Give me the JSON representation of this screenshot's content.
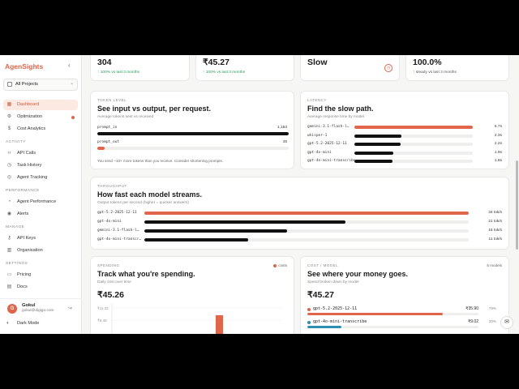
{
  "app": {
    "brand": "AgenSights",
    "project": "All Projects"
  },
  "nav": {
    "main": [
      {
        "label": "Dashboard",
        "icon": "grid-icon",
        "active": true
      },
      {
        "label": "Optimization",
        "icon": "gear-icon",
        "dot": true
      },
      {
        "label": "Cost Analytics",
        "icon": "dollar-icon"
      }
    ],
    "activity_label": "ACTIVITY",
    "activity": [
      {
        "label": "API Calls",
        "icon": "code-icon"
      },
      {
        "label": "Task History",
        "icon": "history-icon"
      },
      {
        "label": "Agent Tracking",
        "icon": "agent-icon"
      }
    ],
    "performance_label": "PERFORMANCE",
    "performance": [
      {
        "label": "Agent Performance",
        "icon": "gauge-icon"
      },
      {
        "label": "Alerts",
        "icon": "bell-icon"
      }
    ],
    "manage_label": "MANAGE",
    "manage": [
      {
        "label": "API Keys",
        "icon": "key-icon"
      },
      {
        "label": "Organisation",
        "icon": "building-icon"
      }
    ],
    "settings_label": "SETTINGS",
    "settings": [
      {
        "label": "Pricing",
        "icon": "card-icon"
      },
      {
        "label": "Docs",
        "icon": "doc-icon"
      }
    ]
  },
  "user": {
    "initial": "G",
    "name": "Gokul",
    "email": "gokul@digigo.com"
  },
  "dark_mode": "Dark Mode",
  "kpis": [
    {
      "value": "304",
      "delta": "↑ 100% vs last 3 months"
    },
    {
      "value": "₹45.27",
      "delta": "↑ 100% vs last 3 months"
    },
    {
      "value": "Slow",
      "delta": ""
    },
    {
      "value": "100.0%",
      "delta": "↑ steady vs last 3 months"
    }
  ],
  "tokens": {
    "overline": "TOKEN LEVEL",
    "title": "See input vs output, per request.",
    "subtitle": "Average tokens sent vs received",
    "rows": [
      {
        "label": "prompt_in",
        "value": "1,153",
        "fraction": 1.0
      },
      {
        "label": "prompt_out",
        "value": "45",
        "fraction": 0.04
      }
    ],
    "note": "You send ~10× more tokens than you receive. Consider shortening prompts."
  },
  "latency": {
    "overline": "LATENCY",
    "title": "Find the slow path.",
    "subtitle": "Average response time by model",
    "rows": [
      {
        "label": "gemini-3.1-flash-l…",
        "value": "5.7s",
        "fraction": 1.0,
        "accent": true
      },
      {
        "label": "whisper-1",
        "value": "2.3s",
        "fraction": 0.4
      },
      {
        "label": "gpt-5.2-2025-12-11",
        "value": "2.2s",
        "fraction": 0.39
      },
      {
        "label": "gpt-4o-mini",
        "value": "1.9s",
        "fraction": 0.33
      },
      {
        "label": "gpt-4o-mini-transcribe",
        "value": "1.8s",
        "fraction": 0.32
      }
    ]
  },
  "throughput": {
    "overline": "THROUGHPUT",
    "title": "How fast each model streams.",
    "subtitle": "Output tokens per second (higher = quicker answers)",
    "rows": [
      {
        "label": "gpt-5.2-2025-12-11",
        "value": "34 tok/s",
        "fraction": 1.0,
        "accent": true
      },
      {
        "label": "gpt-4o-mini",
        "value": "21 tok/s",
        "fraction": 0.62
      },
      {
        "label": "gemini-3.1-flash-l…",
        "value": "15 tok/s",
        "fraction": 0.44
      },
      {
        "label": "gpt-4o-mini-transcr…",
        "value": "11 tok/s",
        "fraction": 0.32
      }
    ]
  },
  "spending": {
    "overline": "SPENDING",
    "title": "Track what you're spending.",
    "subtitle": "Daily cost over time",
    "legend": "costs",
    "total": "₹45.26",
    "y_ticks": [
      "₹11.32",
      "₹8.49"
    ]
  },
  "cost_model": {
    "overline": "COST / MODEL",
    "title": "See where your money goes.",
    "subtitle": "Spend broken down by model",
    "count": "5 models",
    "total": "₹45.27",
    "rows": [
      {
        "label": "gpt-5.2-2025-12-11",
        "amount": "₹35.90",
        "pct": "79%",
        "fraction": 0.79,
        "color": "#e0654a"
      },
      {
        "label": "gpt-4o-mini-transcribe",
        "amount": "₹9.02",
        "pct": "20%",
        "fraction": 0.2,
        "color": "#2a8fb0"
      }
    ]
  }
}
